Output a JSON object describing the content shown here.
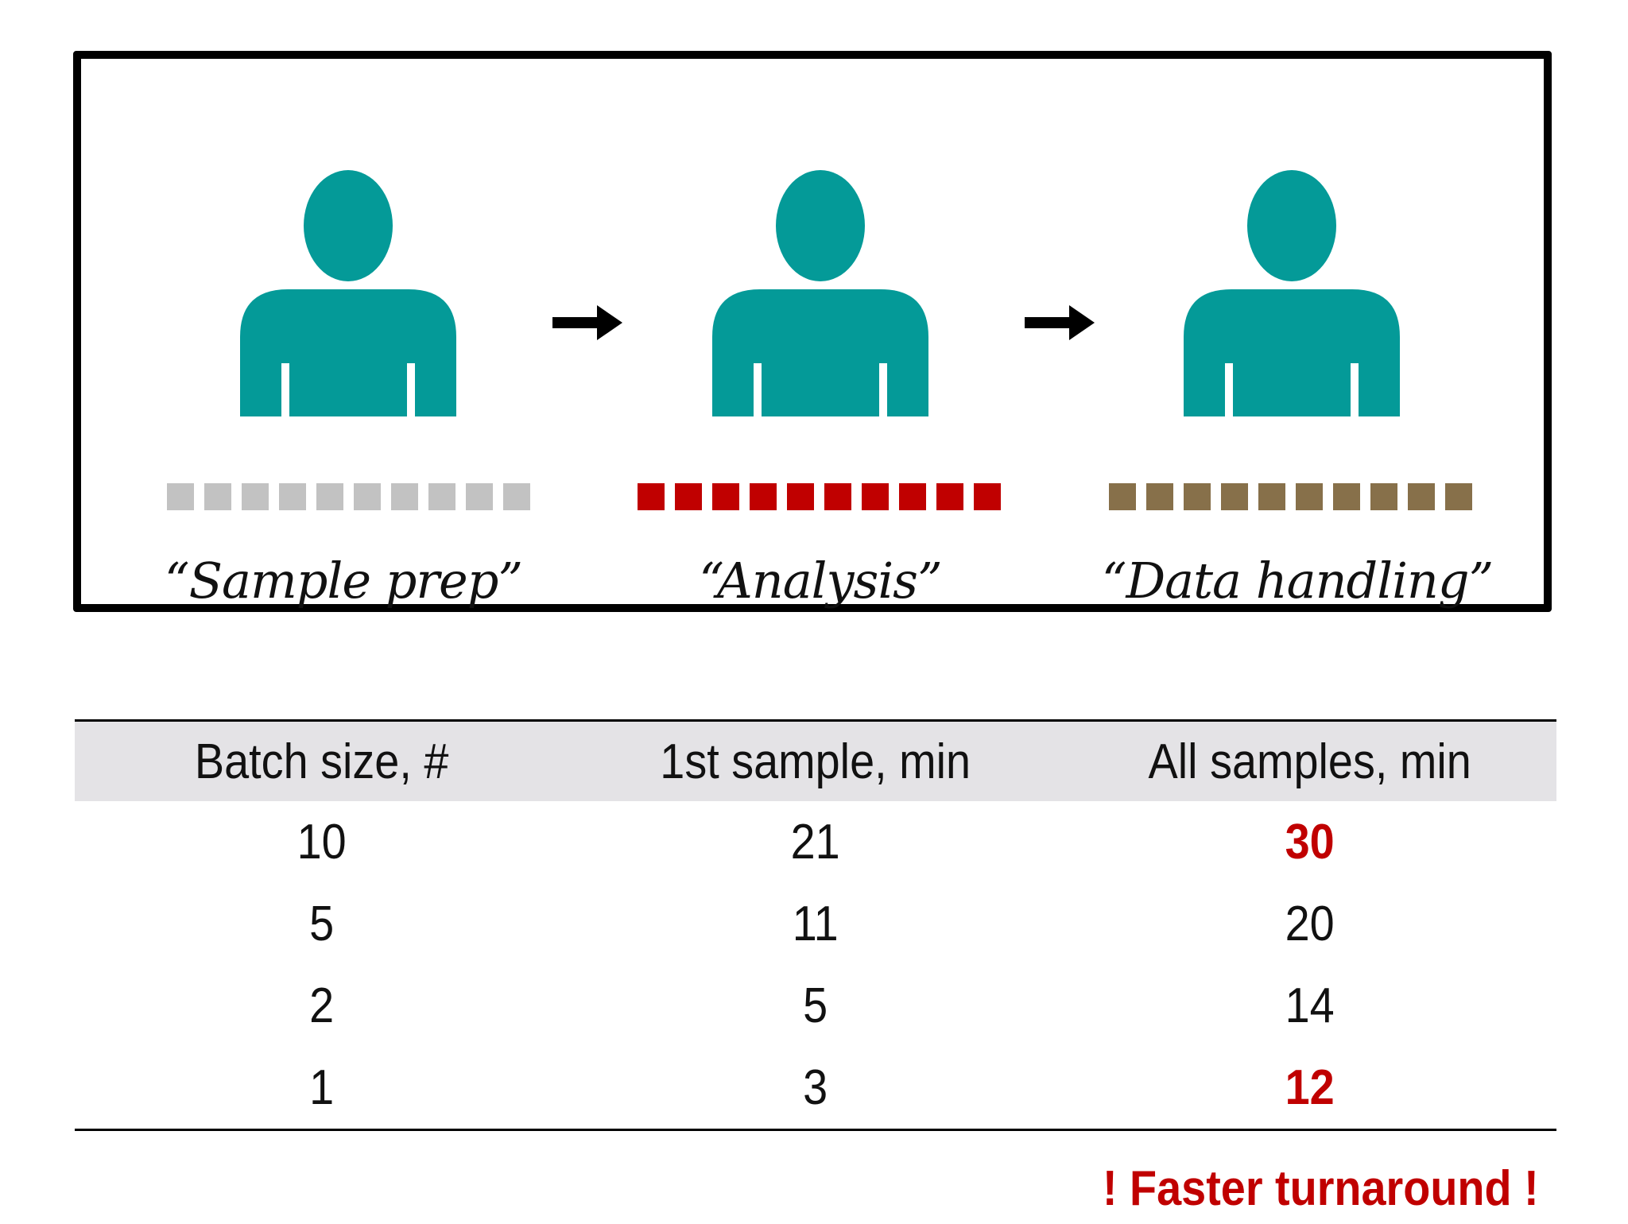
{
  "colors": {
    "person": "#049a98",
    "prep_squares": "#c2c2c2",
    "analysis_squares": "#c00000",
    "data_squares": "#87704a",
    "highlight": "#c00000"
  },
  "workflow": {
    "stages": [
      {
        "label": "“Sample prep”",
        "square_color": "#c2c2c2",
        "square_count": 10
      },
      {
        "label": "“Analysis”",
        "square_color": "#c00000",
        "square_count": 10
      },
      {
        "label": "“Data handling”",
        "square_color": "#87704a",
        "square_count": 10
      }
    ]
  },
  "table": {
    "headers": [
      "Batch size, #",
      "1st sample, min",
      "All samples, min"
    ],
    "rows": [
      {
        "batch": "10",
        "first": "21",
        "all": "30",
        "all_highlight": true
      },
      {
        "batch": "5",
        "first": "11",
        "all": "20",
        "all_highlight": false
      },
      {
        "batch": "2",
        "first": "5",
        "all": "14",
        "all_highlight": false
      },
      {
        "batch": "1",
        "first": "3",
        "all": "12",
        "all_highlight": true
      }
    ]
  },
  "note": "! Faster turnaround !"
}
